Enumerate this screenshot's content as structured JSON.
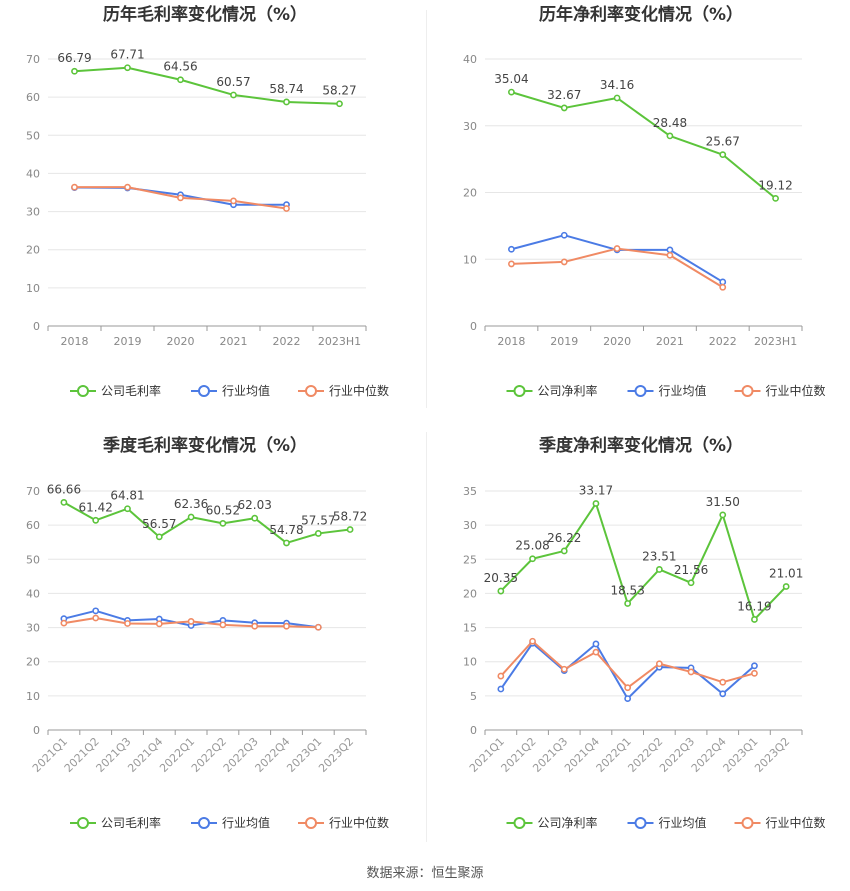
{
  "colors": {
    "company": "#5cc43b",
    "avg": "#4b7be5",
    "median": "#f08a64",
    "grid": "#e6e6e6",
    "axis": "#999999"
  },
  "legend_labels_gross": {
    "company": "公司毛利率",
    "avg": "行业均值",
    "median": "行业中位数"
  },
  "legend_labels_net": {
    "company": "公司净利率",
    "avg": "行业均值",
    "median": "行业中位数"
  },
  "footer": "数据来源：恒生聚源",
  "chart_data": [
    {
      "type": "line",
      "title": "历年毛利率变化情况（%）",
      "categories": [
        "2018",
        "2019",
        "2020",
        "2021",
        "2022",
        "2023H1"
      ],
      "ylim": [
        0,
        70
      ],
      "yticks": [
        0,
        10,
        20,
        30,
        40,
        50,
        60,
        70
      ],
      "legend": "bottom",
      "series": [
        {
          "name": "公司毛利率",
          "key": "company",
          "values": [
            66.79,
            67.71,
            64.56,
            60.57,
            58.74,
            58.27
          ],
          "labels": true
        },
        {
          "name": "行业均值",
          "key": "avg",
          "values": [
            36.3,
            36.2,
            34.4,
            31.8,
            31.8,
            null
          ]
        },
        {
          "name": "行业中位数",
          "key": "median",
          "values": [
            36.4,
            36.4,
            33.6,
            32.8,
            30.8,
            null
          ]
        }
      ]
    },
    {
      "type": "line",
      "title": "历年净利率变化情况（%）",
      "categories": [
        "2018",
        "2019",
        "2020",
        "2021",
        "2022",
        "2023H1"
      ],
      "ylim": [
        0,
        40
      ],
      "yticks": [
        0,
        10,
        20,
        30,
        40
      ],
      "legend": "bottom",
      "series": [
        {
          "name": "公司净利率",
          "key": "company",
          "values": [
            35.04,
            32.67,
            34.16,
            28.48,
            25.67,
            19.12
          ],
          "labels": true
        },
        {
          "name": "行业均值",
          "key": "avg",
          "values": [
            11.5,
            13.6,
            11.4,
            11.4,
            6.6,
            null
          ]
        },
        {
          "name": "行业中位数",
          "key": "median",
          "values": [
            9.3,
            9.6,
            11.6,
            10.6,
            5.8,
            null
          ]
        }
      ]
    },
    {
      "type": "line",
      "title": "季度毛利率变化情况（%）",
      "categories": [
        "2021Q1",
        "2021Q2",
        "2021Q3",
        "2021Q4",
        "2022Q1",
        "2022Q2",
        "2022Q3",
        "2022Q4",
        "2023Q1",
        "2023Q2"
      ],
      "ylim": [
        0,
        70
      ],
      "yticks": [
        0,
        10,
        20,
        30,
        40,
        50,
        60,
        70
      ],
      "legend": "bottom",
      "series": [
        {
          "name": "公司毛利率",
          "key": "company",
          "values": [
            66.66,
            61.42,
            64.81,
            56.57,
            62.36,
            60.52,
            62.03,
            54.78,
            57.57,
            58.72
          ],
          "labels": true
        },
        {
          "name": "行业均值",
          "key": "avg",
          "values": [
            32.6,
            34.9,
            32.1,
            32.5,
            30.6,
            32.1,
            31.4,
            31.3,
            30.1,
            null
          ]
        },
        {
          "name": "行业中位数",
          "key": "median",
          "values": [
            31.3,
            32.8,
            31.2,
            31.1,
            31.8,
            30.8,
            30.4,
            30.4,
            30.1,
            null
          ]
        }
      ]
    },
    {
      "type": "line",
      "title": "季度净利率变化情况（%）",
      "categories": [
        "2021Q1",
        "2021Q2",
        "2021Q3",
        "2021Q4",
        "2022Q1",
        "2022Q2",
        "2022Q3",
        "2022Q4",
        "2023Q1",
        "2023Q2"
      ],
      "ylim": [
        0,
        35
      ],
      "yticks": [
        0,
        5,
        10,
        15,
        20,
        25,
        30,
        35
      ],
      "legend": "bottom",
      "series": [
        {
          "name": "公司净利率",
          "key": "company",
          "values": [
            20.35,
            25.08,
            26.22,
            33.17,
            18.53,
            23.51,
            21.56,
            31.5,
            16.19,
            21.01
          ],
          "labels": true
        },
        {
          "name": "行业均值",
          "key": "avg",
          "values": [
            6.0,
            12.7,
            8.7,
            12.6,
            4.6,
            9.2,
            9.1,
            5.3,
            9.4,
            null
          ]
        },
        {
          "name": "行业中位数",
          "key": "median",
          "values": [
            7.9,
            13.0,
            8.9,
            11.4,
            6.2,
            9.7,
            8.5,
            7.0,
            8.3,
            null
          ]
        }
      ]
    }
  ]
}
